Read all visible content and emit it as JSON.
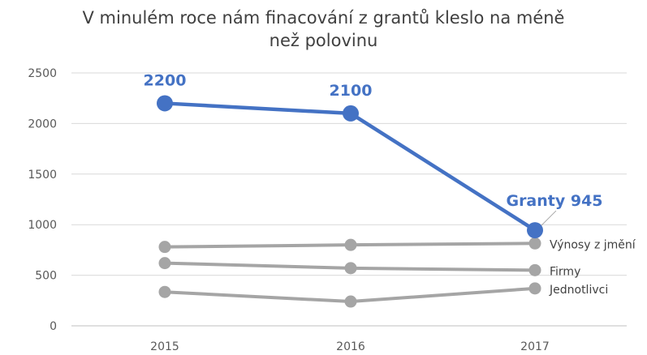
{
  "chart_data": {
    "type": "line",
    "title_lines": [
      "V minulém roce nám finacování z grantů kleslo na méně",
      "než polovinu"
    ],
    "categories": [
      "2015",
      "2016",
      "2017"
    ],
    "ylim": [
      0,
      2500
    ],
    "yticks": [
      0,
      500,
      1000,
      1500,
      2000,
      2500
    ],
    "ytick_labels": [
      "0",
      "500",
      "1000",
      "1500",
      "2000",
      "2500"
    ],
    "grid": true,
    "legend": "none",
    "series": [
      {
        "name": "Granty",
        "values": [
          2200,
          2100,
          945
        ],
        "color": "#4472C4",
        "highlight": true,
        "point_labels": [
          "2200",
          "2100",
          "Granty 945"
        ]
      },
      {
        "name": "Výnosy z jmění",
        "values": [
          780,
          800,
          815
        ],
        "color": "#A5A5A5"
      },
      {
        "name": "Firmy",
        "values": [
          620,
          570,
          550
        ],
        "color": "#A5A5A5"
      },
      {
        "name": "Jednotlivci",
        "values": [
          335,
          240,
          370
        ],
        "color": "#A5A5A5"
      }
    ]
  }
}
